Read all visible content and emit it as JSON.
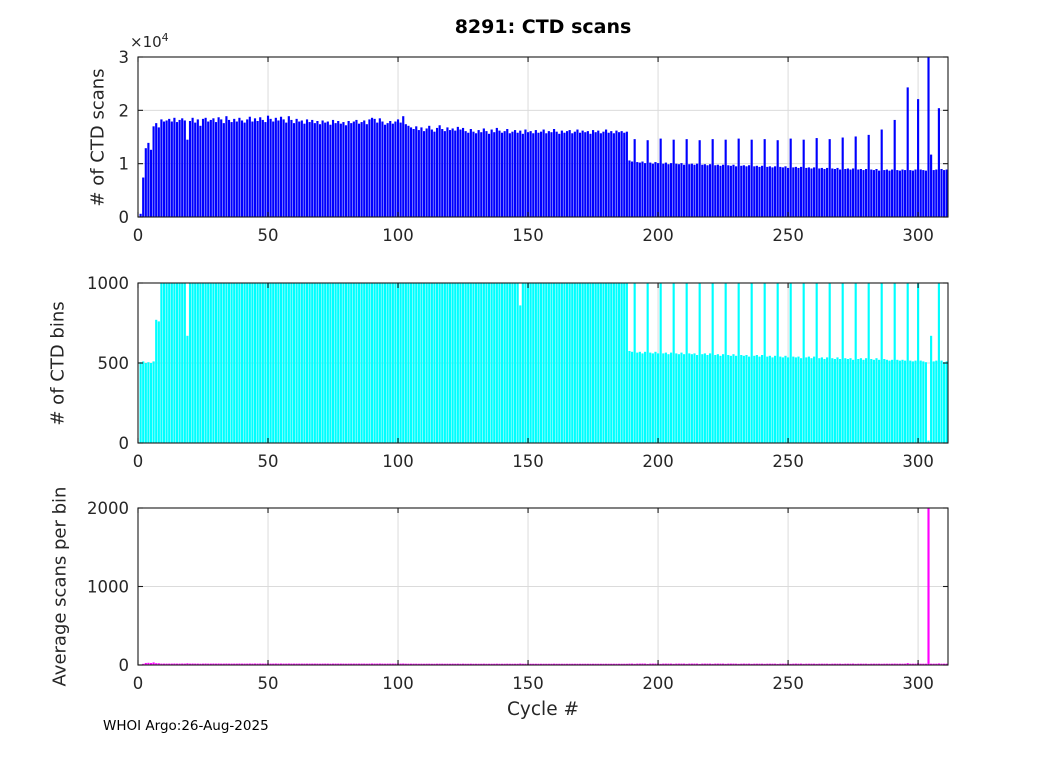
{
  "figure": {
    "title": "8291: CTD scans",
    "xlabel": "Cycle #",
    "footer": "WHOI Argo:26-Aug-2025",
    "exponent_base": "×10",
    "exponent_power": "4",
    "background_color": "#ffffff",
    "axis_color": "#1a1a1a",
    "grid_color": "#dbdbdb",
    "tick_label_color": "#262626"
  },
  "chart_data": [
    {
      "type": "bar",
      "title": "8291: CTD scans",
      "ylabel": "# of CTD scans",
      "bar_color": "#0000ff",
      "ylim": [
        0,
        30000
      ],
      "yticks": [
        0,
        10000,
        20000,
        30000
      ],
      "ytick_labels": [
        "0",
        "1",
        "2",
        "3"
      ],
      "ytick_scale_label": "×10^4",
      "xlim": [
        0,
        311.5
      ],
      "xticks": [
        0,
        50,
        100,
        150,
        200,
        250,
        300
      ],
      "grid": true,
      "x_start_cycle": 1,
      "values": [
        600,
        7400,
        12900,
        13900,
        12600,
        17000,
        17600,
        16800,
        18300,
        17900,
        18100,
        18400,
        17900,
        18600,
        17800,
        18200,
        18500,
        18100,
        14500,
        18000,
        18600,
        17700,
        18300,
        17100,
        18400,
        18600,
        17900,
        18200,
        18500,
        17800,
        18700,
        18300,
        17600,
        18900,
        18200,
        17800,
        18400,
        17900,
        18600,
        18100,
        17700,
        18300,
        18800,
        17900,
        18500,
        18000,
        18700,
        18200,
        17800,
        19000,
        18400,
        17900,
        18600,
        18100,
        18800,
        18300,
        17700,
        18900,
        18200,
        17600,
        18400,
        17900,
        18100,
        17500,
        18300,
        17800,
        18200,
        17600,
        18000,
        17400,
        18100,
        17700,
        17900,
        17300,
        18200,
        17600,
        18000,
        17500,
        17800,
        17200,
        18000,
        17600,
        17900,
        18200,
        17500,
        17800,
        18100,
        17400,
        18300,
        18600,
        18400,
        17700,
        18500,
        17900,
        17300,
        17600,
        18000,
        17500,
        17900,
        18300,
        17700,
        18900,
        17400,
        17100,
        16800,
        16500,
        17000,
        16300,
        16800,
        16100,
        16600,
        17100,
        16400,
        16000,
        16700,
        17200,
        16500,
        16100,
        16800,
        16300,
        16600,
        16200,
        16900,
        16400,
        16700,
        16100,
        15800,
        16500,
        16000,
        15700,
        16300,
        15900,
        16600,
        16100,
        15600,
        16400,
        15900,
        16700,
        16200,
        15800,
        16100,
        16500,
        15700,
        16000,
        16300,
        15800,
        16200,
        15600,
        16400,
        15900,
        16100,
        15700,
        16300,
        15800,
        16000,
        16400,
        15700,
        16100,
        15900,
        16500,
        16000,
        15600,
        16200,
        15800,
        16100,
        16300,
        15700,
        16000,
        16400,
        15800,
        16200,
        15900,
        16100,
        15600,
        16300,
        15900,
        16200,
        15700,
        16000,
        16400,
        15800,
        16100,
        15700,
        16200,
        15900,
        16100,
        15800,
        16000,
        10600,
        10400,
        14600,
        10300,
        10200,
        10400,
        10100,
        14400,
        10200,
        10000,
        10300,
        10100,
        14700,
        10000,
        10200,
        9900,
        10100,
        14500,
        10000,
        9900,
        10100,
        9800,
        14600,
        9900,
        10000,
        9800,
        10000,
        14400,
        9800,
        9900,
        9700,
        9900,
        14600,
        9700,
        9800,
        9600,
        9800,
        14500,
        9700,
        9600,
        9800,
        9500,
        14700,
        9600,
        9700,
        9500,
        9700,
        14500,
        9500,
        9600,
        9400,
        9600,
        14600,
        9400,
        9500,
        9300,
        9500,
        14400,
        9400,
        9300,
        9500,
        9200,
        14700,
        9300,
        9400,
        9200,
        9400,
        14500,
        9200,
        9300,
        9100,
        9300,
        14800,
        9100,
        9200,
        9000,
        9200,
        14600,
        9100,
        9000,
        9200,
        8900,
        14900,
        9000,
        9100,
        8900,
        9100,
        15100,
        8900,
        9000,
        8800,
        9000,
        15400,
        8900,
        8800,
        9000,
        8700,
        16400,
        8800,
        8900,
        8700,
        8900,
        18200,
        8800,
        8700,
        8900,
        8800,
        24300,
        8800,
        8700,
        8900,
        22100,
        8900,
        8800,
        8700,
        30200,
        11700,
        8800,
        8900,
        20400,
        9000,
        8800,
        8900
      ]
    },
    {
      "type": "bar",
      "ylabel": "# of CTD bins",
      "bar_color": "#00ffff",
      "ylim": [
        0,
        1000
      ],
      "yticks": [
        0,
        500,
        1000
      ],
      "ytick_labels": [
        "0",
        "500",
        "1000"
      ],
      "xlim": [
        0,
        311.5
      ],
      "xticks": [
        0,
        50,
        100,
        150,
        200,
        250,
        300
      ],
      "grid": true,
      "x_start_cycle": 1,
      "values": [
        505,
        510,
        500,
        505,
        500,
        510,
        770,
        760,
        1000,
        1000,
        1000,
        1000,
        1000,
        1000,
        1000,
        1000,
        1000,
        1000,
        670,
        1000,
        1000,
        1000,
        1000,
        1000,
        1000,
        1000,
        1000,
        1000,
        1000,
        1000,
        1000,
        1000,
        1000,
        1000,
        1000,
        1000,
        1000,
        1000,
        1000,
        1000,
        1000,
        1000,
        1000,
        1000,
        1000,
        1000,
        1000,
        1000,
        1000,
        1000,
        1000,
        1000,
        1000,
        1000,
        1000,
        1000,
        1000,
        1000,
        1000,
        1000,
        1000,
        1000,
        1000,
        1000,
        1000,
        1000,
        1000,
        1000,
        1000,
        1000,
        1000,
        1000,
        1000,
        1000,
        1000,
        1000,
        1000,
        1000,
        1000,
        1000,
        1000,
        1000,
        1000,
        1000,
        1000,
        1000,
        1000,
        1000,
        1000,
        1000,
        1000,
        1000,
        1000,
        1000,
        1000,
        1000,
        1000,
        1000,
        1000,
        1000,
        1000,
        1000,
        1000,
        1000,
        1000,
        1000,
        1000,
        1000,
        1000,
        1000,
        1000,
        1000,
        1000,
        1000,
        1000,
        1000,
        1000,
        1000,
        1000,
        1000,
        1000,
        1000,
        1000,
        1000,
        1000,
        1000,
        1000,
        1000,
        1000,
        1000,
        1000,
        1000,
        1000,
        1000,
        1000,
        1000,
        1000,
        1000,
        1000,
        1000,
        1000,
        1000,
        1000,
        1000,
        1000,
        1000,
        860,
        1000,
        1000,
        1000,
        1000,
        1000,
        1000,
        1000,
        1000,
        1000,
        1000,
        1000,
        1000,
        1000,
        1000,
        1000,
        1000,
        1000,
        1000,
        1000,
        1000,
        1000,
        1000,
        1000,
        1000,
        1000,
        1000,
        1000,
        1000,
        1000,
        1000,
        1000,
        1000,
        1000,
        1000,
        1000,
        1000,
        1000,
        1000,
        1000,
        1000,
        1000,
        575,
        570,
        1000,
        565,
        570,
        560,
        570,
        1000,
        565,
        560,
        570,
        560,
        1000,
        560,
        565,
        555,
        565,
        1000,
        560,
        555,
        565,
        555,
        1000,
        560,
        555,
        560,
        550,
        1000,
        555,
        560,
        550,
        560,
        1000,
        550,
        555,
        545,
        555,
        1000,
        550,
        545,
        555,
        545,
        1000,
        550,
        545,
        550,
        540,
        1000,
        545,
        550,
        540,
        550,
        1000,
        540,
        545,
        535,
        545,
        1000,
        540,
        535,
        545,
        535,
        1000,
        540,
        535,
        540,
        530,
        1000,
        535,
        540,
        530,
        540,
        1000,
        530,
        535,
        525,
        535,
        1000,
        530,
        525,
        535,
        525,
        1000,
        530,
        525,
        530,
        520,
        1000,
        525,
        530,
        520,
        530,
        1000,
        525,
        520,
        530,
        520,
        1000,
        525,
        520,
        515,
        520,
        1000,
        520,
        515,
        520,
        515,
        1000,
        515,
        510,
        515,
        1000,
        515,
        510,
        505,
        15,
        670,
        510,
        515,
        1000,
        515,
        505,
        510
      ]
    },
    {
      "type": "bar",
      "ylabel": "Average scans per bin",
      "xlabel": "Cycle #",
      "bar_color": "#ff00ff",
      "ylim": [
        0,
        2000
      ],
      "yticks": [
        0,
        1000,
        2000
      ],
      "ytick_labels": [
        "0",
        "1000",
        "2000"
      ],
      "xlim": [
        0,
        311.5
      ],
      "xticks": [
        0,
        50,
        100,
        150,
        200,
        250,
        300
      ],
      "grid": true,
      "x_start_cycle": 1,
      "values": [
        1,
        15,
        26,
        28,
        25,
        33,
        23,
        22,
        18,
        18,
        18,
        18,
        18,
        19,
        18,
        18,
        19,
        18,
        22,
        18,
        19,
        18,
        18,
        17,
        18,
        19,
        18,
        18,
        19,
        18,
        19,
        18,
        18,
        19,
        18,
        18,
        18,
        18,
        19,
        18,
        18,
        18,
        19,
        18,
        19,
        18,
        19,
        18,
        18,
        19,
        18,
        18,
        19,
        18,
        19,
        18,
        18,
        19,
        18,
        18,
        18,
        18,
        18,
        18,
        18,
        18,
        18,
        18,
        18,
        17,
        18,
        18,
        18,
        17,
        18,
        18,
        18,
        18,
        18,
        17,
        18,
        18,
        18,
        18,
        18,
        18,
        18,
        17,
        18,
        19,
        18,
        18,
        19,
        18,
        17,
        18,
        18,
        18,
        18,
        18,
        18,
        19,
        17,
        17,
        17,
        17,
        17,
        16,
        17,
        16,
        17,
        17,
        16,
        16,
        17,
        17,
        17,
        16,
        17,
        16,
        17,
        16,
        17,
        16,
        17,
        16,
        16,
        17,
        16,
        16,
        16,
        16,
        17,
        16,
        16,
        16,
        16,
        17,
        16,
        16,
        16,
        17,
        16,
        16,
        16,
        16,
        19,
        16,
        16,
        16,
        16,
        16,
        16,
        16,
        16,
        16,
        16,
        16,
        16,
        17,
        16,
        16,
        16,
        16,
        16,
        16,
        16,
        16,
        16,
        16,
        16,
        16,
        16,
        16,
        16,
        16,
        16,
        16,
        16,
        16,
        16,
        16,
        16,
        16,
        16,
        16,
        16,
        16,
        18,
        18,
        15,
        18,
        18,
        19,
        18,
        14,
        18,
        18,
        18,
        18,
        15,
        18,
        18,
        18,
        18,
        15,
        18,
        18,
        18,
        18,
        15,
        18,
        18,
        18,
        18,
        14,
        18,
        18,
        18,
        18,
        15,
        18,
        18,
        18,
        18,
        15,
        18,
        18,
        18,
        17,
        15,
        17,
        18,
        17,
        18,
        15,
        17,
        17,
        17,
        17,
        15,
        17,
        17,
        17,
        17,
        14,
        17,
        17,
        17,
        17,
        15,
        17,
        18,
        17,
        18,
        15,
        17,
        17,
        17,
        17,
        15,
        17,
        17,
        17,
        17,
        15,
        17,
        17,
        17,
        17,
        15,
        17,
        17,
        17,
        18,
        15,
        17,
        17,
        17,
        17,
        15,
        17,
        17,
        17,
        17,
        16,
        17,
        17,
        17,
        17,
        18,
        17,
        17,
        17,
        17,
        24,
        17,
        17,
        17,
        22,
        17,
        17,
        17,
        2013,
        17,
        17,
        17,
        20,
        17,
        17,
        17
      ]
    }
  ]
}
